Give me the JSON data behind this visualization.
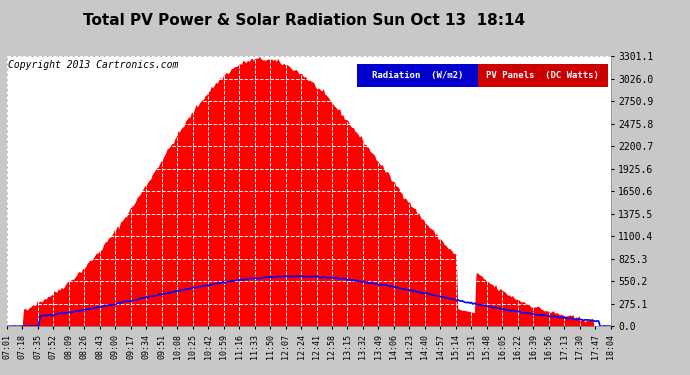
{
  "title": "Total PV Power & Solar Radiation Sun Oct 13  18:14",
  "copyright": "Copyright 2013 Cartronics.com",
  "background_color": "#c8c8c8",
  "plot_bg_color": "#ffffff",
  "y_ticks": [
    0.0,
    275.1,
    550.2,
    825.3,
    1100.4,
    1375.5,
    1650.6,
    1925.6,
    2200.7,
    2475.8,
    2750.9,
    3026.0,
    3301.1
  ],
  "x_labels": [
    "07:01",
    "07:18",
    "07:35",
    "07:52",
    "08:09",
    "08:26",
    "08:43",
    "09:00",
    "09:17",
    "09:34",
    "09:51",
    "10:08",
    "10:25",
    "10:42",
    "10:59",
    "11:16",
    "11:33",
    "11:50",
    "12:07",
    "12:24",
    "12:41",
    "12:58",
    "13:15",
    "13:32",
    "13:49",
    "14:06",
    "14:23",
    "14:40",
    "14:57",
    "15:14",
    "15:31",
    "15:48",
    "16:05",
    "16:22",
    "16:39",
    "16:56",
    "17:13",
    "17:30",
    "17:47",
    "18:04"
  ],
  "legend_radiation_bg": "#0000cc",
  "legend_radiation_text": "Radiation  (W/m2)",
  "legend_pv_bg": "#cc0000",
  "legend_pv_text": "PV Panels  (DC Watts)",
  "pv_color": "#ff0000",
  "radiation_color": "#0000ff",
  "grid_color": "#ffffff",
  "title_fontsize": 11,
  "copyright_fontsize": 7,
  "tick_fontsize": 7,
  "xtick_fontsize": 6
}
